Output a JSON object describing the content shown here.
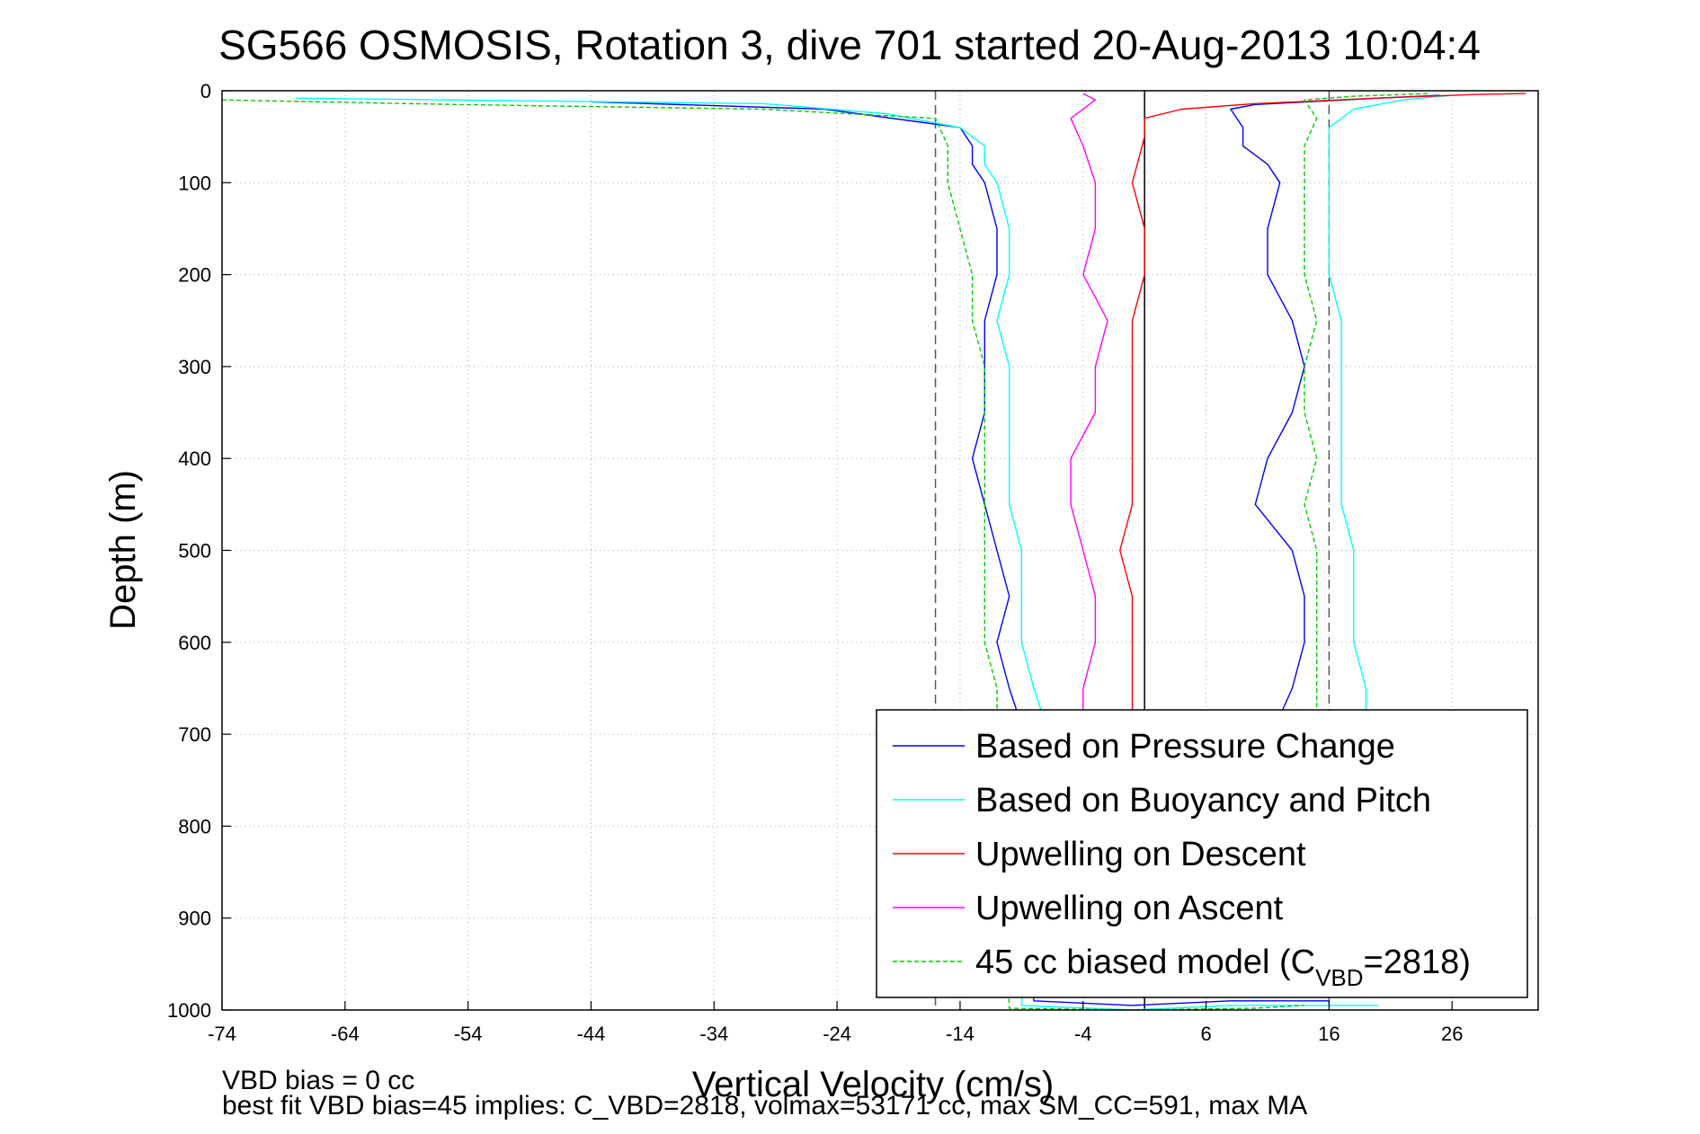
{
  "window": {
    "title": "SG566 OSMOSIS, Rotation 3, dive 701 started 20-Aug-2013 10:04:4"
  },
  "colors": {
    "pressure": "#0000ff",
    "buoyancy": "#00ffff",
    "descent": "#ff0000",
    "ascent": "#ff00ff",
    "model": "#00cc00",
    "grid": "#aaaaaa",
    "vline": "#000000",
    "dashed": "#555555"
  },
  "footer": {
    "line1": "VBD bias = 0 cc",
    "line2": "best fit VBD bias=45 implies: C_VBD=2818, volmax=53171 cc, max SM_CC=591, max MA"
  },
  "chart_data": {
    "type": "line",
    "title": "SG566 OSMOSIS, Rotation 3, dive 701 started 20-Aug-2013 10:04:4",
    "xlabel": "Vertical Velocity (cm/s)",
    "ylabel": "Depth (m)",
    "xlim": [
      -74,
      33
    ],
    "ylim": [
      0,
      1000
    ],
    "y_reversed": true,
    "grid": true,
    "xticks": [
      -74,
      -64,
      -54,
      -44,
      -34,
      -24,
      -14,
      -4,
      6,
      16,
      26
    ],
    "xtick_labels": [
      "-74",
      "-64",
      "-54",
      "-44",
      "-34",
      "-24",
      "-14",
      "-4",
      "6",
      "16",
      "26"
    ],
    "yticks": [
      0,
      100,
      200,
      300,
      400,
      500,
      600,
      700,
      800,
      900,
      1000
    ],
    "ytick_labels": [
      "0",
      "100",
      "200",
      "300",
      "400",
      "500",
      "600",
      "700",
      "800",
      "900",
      "1000"
    ],
    "reference_lines": [
      {
        "x": 1,
        "style": "solid"
      },
      {
        "x": -16,
        "style": "dashed"
      },
      {
        "x": 16,
        "style": "dashed"
      }
    ],
    "legend": {
      "position": "bottom-right",
      "entries": [
        {
          "label": "Based on Pressure Change",
          "key": "pressure"
        },
        {
          "label": "Based on Buoyancy and Pitch",
          "key": "buoyancy"
        },
        {
          "label": "Upwelling on Descent",
          "key": "descent"
        },
        {
          "label": "Upwelling on Ascent",
          "key": "ascent"
        },
        {
          "label_prefix": "45 cc biased model (C",
          "label_sub": "VBD",
          "label_suffix": "=2818)",
          "key": "model"
        }
      ]
    },
    "series": [
      {
        "key": "pressure",
        "style": "solid",
        "points": [
          [
            -44,
            12
          ],
          [
            -25,
            20
          ],
          [
            -14,
            40
          ],
          [
            -13,
            60
          ],
          [
            -13,
            80
          ],
          [
            -12,
            100
          ],
          [
            -11,
            150
          ],
          [
            -11,
            200
          ],
          [
            -12,
            250
          ],
          [
            -12,
            300
          ],
          [
            -12,
            350
          ],
          [
            -13,
            400
          ],
          [
            -12,
            450
          ],
          [
            -11,
            500
          ],
          [
            -10,
            550
          ],
          [
            -11,
            600
          ],
          [
            -10,
            650
          ],
          [
            -9,
            690
          ],
          [
            -8,
            990
          ],
          [
            0,
            995
          ],
          [
            8,
            990
          ],
          [
            16,
            990
          ]
        ]
      },
      {
        "key": "pressure",
        "style": "solid",
        "points": [
          [
            25,
            5
          ],
          [
            20,
            8
          ],
          [
            10,
            15
          ],
          [
            8,
            20
          ],
          [
            9,
            40
          ],
          [
            9,
            60
          ],
          [
            11,
            80
          ],
          [
            12,
            100
          ],
          [
            11,
            150
          ],
          [
            11,
            200
          ],
          [
            13,
            250
          ],
          [
            14,
            300
          ],
          [
            13,
            350
          ],
          [
            11,
            400
          ],
          [
            10,
            450
          ],
          [
            13,
            500
          ],
          [
            14,
            550
          ],
          [
            14,
            600
          ],
          [
            13,
            650
          ],
          [
            12,
            680
          ]
        ]
      },
      {
        "key": "buoyancy",
        "style": "solid",
        "points": [
          [
            -68,
            8
          ],
          [
            -30,
            14
          ],
          [
            -20,
            25
          ],
          [
            -14,
            40
          ],
          [
            -12,
            60
          ],
          [
            -12,
            80
          ],
          [
            -11,
            100
          ],
          [
            -10,
            150
          ],
          [
            -10,
            200
          ],
          [
            -11,
            250
          ],
          [
            -10,
            300
          ],
          [
            -10,
            350
          ],
          [
            -10,
            400
          ],
          [
            -10,
            450
          ],
          [
            -9,
            500
          ],
          [
            -9,
            550
          ],
          [
            -9,
            600
          ],
          [
            -8,
            650
          ],
          [
            -7,
            690
          ],
          [
            -9,
            995
          ],
          [
            0,
            1000
          ],
          [
            8,
            995
          ],
          [
            20,
            995
          ]
        ]
      },
      {
        "key": "buoyancy",
        "style": "solid",
        "points": [
          [
            26,
            5
          ],
          [
            22,
            10
          ],
          [
            18,
            20
          ],
          [
            16,
            40
          ],
          [
            16,
            80
          ],
          [
            16,
            150
          ],
          [
            16,
            200
          ],
          [
            17,
            250
          ],
          [
            17,
            300
          ],
          [
            17,
            350
          ],
          [
            17,
            400
          ],
          [
            17,
            450
          ],
          [
            18,
            500
          ],
          [
            18,
            550
          ],
          [
            18,
            600
          ],
          [
            19,
            650
          ],
          [
            19,
            680
          ]
        ]
      },
      {
        "key": "descent",
        "style": "solid",
        "points": [
          [
            32,
            3
          ],
          [
            28,
            4
          ],
          [
            20,
            8
          ],
          [
            10,
            14
          ],
          [
            4,
            20
          ],
          [
            1,
            30
          ],
          [
            1,
            50
          ],
          [
            0,
            100
          ],
          [
            1,
            150
          ],
          [
            1,
            200
          ],
          [
            0,
            250
          ],
          [
            0,
            300
          ],
          [
            0,
            350
          ],
          [
            0,
            400
          ],
          [
            0,
            450
          ],
          [
            -1,
            500
          ],
          [
            0,
            550
          ],
          [
            0,
            600
          ],
          [
            0,
            650
          ],
          [
            0,
            680
          ]
        ]
      },
      {
        "key": "ascent",
        "style": "solid",
        "points": [
          [
            -4,
            3
          ],
          [
            -3,
            10
          ],
          [
            -5,
            30
          ],
          [
            -4,
            60
          ],
          [
            -3,
            100
          ],
          [
            -3,
            150
          ],
          [
            -4,
            200
          ],
          [
            -2,
            250
          ],
          [
            -3,
            300
          ],
          [
            -3,
            350
          ],
          [
            -5,
            400
          ],
          [
            -5,
            450
          ],
          [
            -4,
            500
          ],
          [
            -3,
            550
          ],
          [
            -3,
            600
          ],
          [
            -4,
            650
          ],
          [
            -4,
            680
          ]
        ]
      },
      {
        "key": "model",
        "style": "dashed",
        "points": [
          [
            -74,
            10
          ],
          [
            -55,
            15
          ],
          [
            -30,
            20
          ],
          [
            -16,
            30
          ],
          [
            -15,
            60
          ],
          [
            -15,
            100
          ],
          [
            -14,
            150
          ],
          [
            -13,
            200
          ],
          [
            -13,
            250
          ],
          [
            -12,
            300
          ],
          [
            -12,
            350
          ],
          [
            -12,
            400
          ],
          [
            -12,
            450
          ],
          [
            -12,
            500
          ],
          [
            -12,
            550
          ],
          [
            -12,
            600
          ],
          [
            -11,
            650
          ],
          [
            -11,
            690
          ],
          [
            -10,
            998
          ],
          [
            0,
            1000
          ],
          [
            10,
            998
          ],
          [
            14,
            995
          ]
        ]
      },
      {
        "key": "model",
        "style": "dashed",
        "points": [
          [
            24,
            3
          ],
          [
            18,
            6
          ],
          [
            14,
            10
          ],
          [
            15,
            30
          ],
          [
            14,
            60
          ],
          [
            14,
            100
          ],
          [
            14,
            150
          ],
          [
            14,
            200
          ],
          [
            15,
            250
          ],
          [
            14,
            300
          ],
          [
            14,
            350
          ],
          [
            15,
            400
          ],
          [
            14,
            450
          ],
          [
            15,
            500
          ],
          [
            15,
            550
          ],
          [
            15,
            600
          ],
          [
            15,
            650
          ],
          [
            15,
            680
          ]
        ]
      }
    ]
  }
}
